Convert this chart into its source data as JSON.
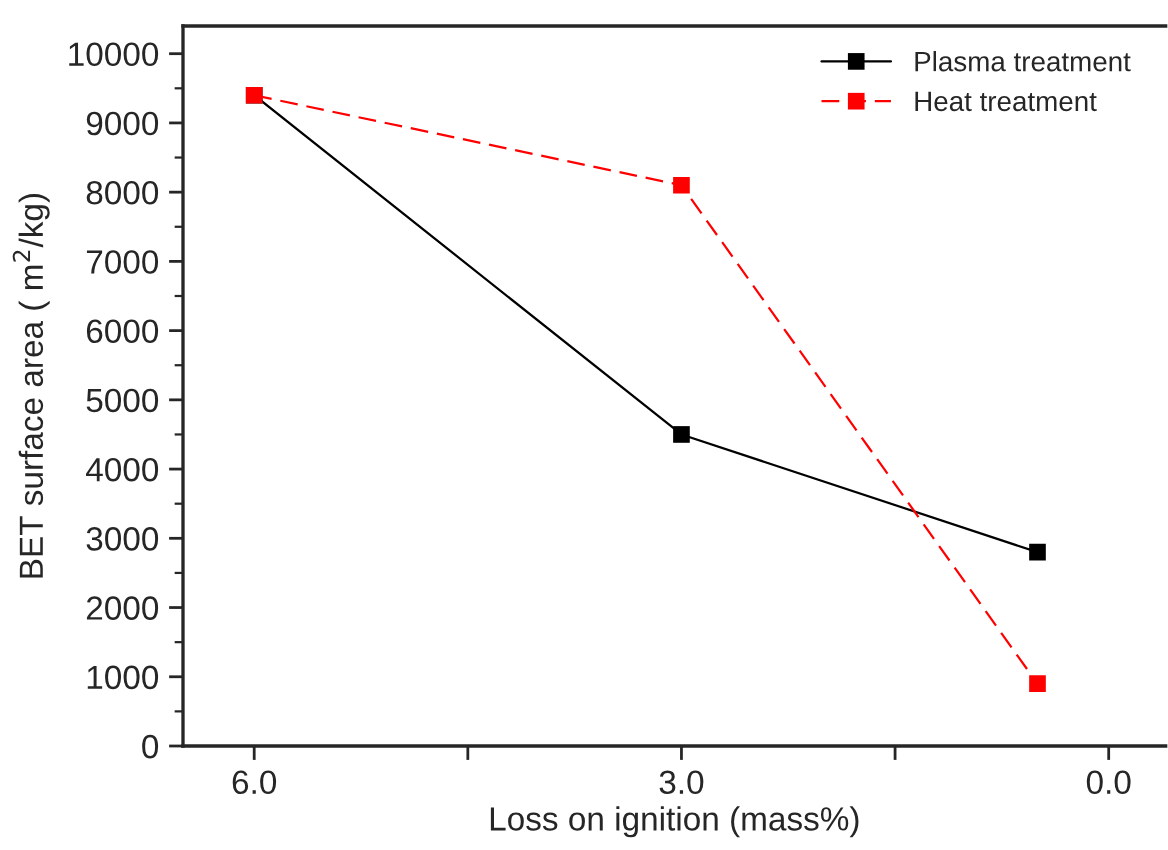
{
  "chart_data": {
    "type": "line",
    "xlabel": "Loss on ignition (mass%)",
    "ylabel": "BET surface area ( m$^{2}$/kg)",
    "x": [
      6.0,
      3.0,
      0.5
    ],
    "series": [
      {
        "name": "Plasma treatment",
        "color": "#000000",
        "values": [
          9400,
          4500,
          2800
        ],
        "line_style": "solid"
      },
      {
        "name": "Heat treatment",
        "color": "#ff0000",
        "values": [
          9400,
          8100,
          900
        ],
        "line_style": "dashed"
      }
    ],
    "xlim": [
      6.5,
      -0.4
    ],
    "xticks": [
      {
        "value": 6.0,
        "label": "6.0"
      },
      {
        "value": 4.5,
        "label": null
      },
      {
        "value": 3.0,
        "label": "3.0"
      },
      {
        "value": 1.5,
        "label": null
      },
      {
        "value": 0.0,
        "label": "0.0"
      }
    ],
    "ylim": [
      0,
      10400
    ],
    "yticks": [
      0,
      1000,
      2000,
      3000,
      4000,
      5000,
      6000,
      7000,
      8000,
      9000,
      10000
    ],
    "marker": "square",
    "legend": "top right",
    "grid": false
  }
}
